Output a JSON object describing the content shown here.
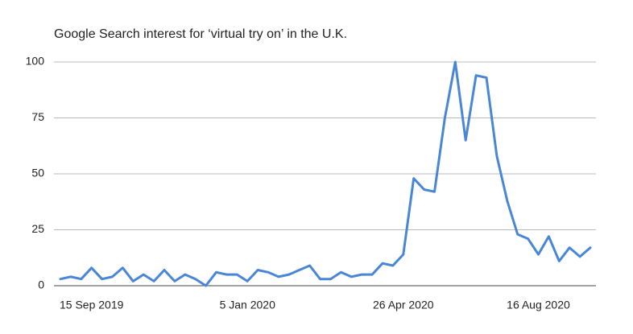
{
  "chart_data": {
    "type": "line",
    "title": "Google Search interest for ‘virtual try on’ in the U.K.",
    "categories": [
      null,
      null,
      null,
      "15 Sep 2019",
      null,
      null,
      null,
      null,
      null,
      null,
      null,
      null,
      null,
      null,
      null,
      null,
      null,
      null,
      "5 Jan 2020",
      null,
      null,
      null,
      null,
      null,
      null,
      null,
      null,
      null,
      null,
      null,
      null,
      null,
      null,
      "26 Apr 2020",
      null,
      null,
      null,
      null,
      null,
      null,
      null,
      null,
      null,
      null,
      null,
      null,
      "16 Aug 2020",
      null,
      null,
      null,
      null,
      null
    ],
    "series": [
      {
        "name": "virtual try on",
        "color": "#4a86d8",
        "values": [
          3,
          4,
          3,
          8,
          3,
          4,
          8,
          2,
          5,
          2,
          7,
          2,
          5,
          3,
          0,
          6,
          5,
          5,
          2,
          7,
          6,
          4,
          5,
          7,
          9,
          3,
          3,
          6,
          4,
          5,
          5,
          10,
          9,
          14,
          48,
          43,
          42,
          75,
          100,
          65,
          94,
          93,
          58,
          38,
          23,
          21,
          14,
          22,
          11,
          17,
          13,
          17
        ]
      }
    ],
    "ylim": [
      0,
      100
    ],
    "yticks": [
      0,
      25,
      50,
      75,
      100
    ],
    "grid": true
  }
}
